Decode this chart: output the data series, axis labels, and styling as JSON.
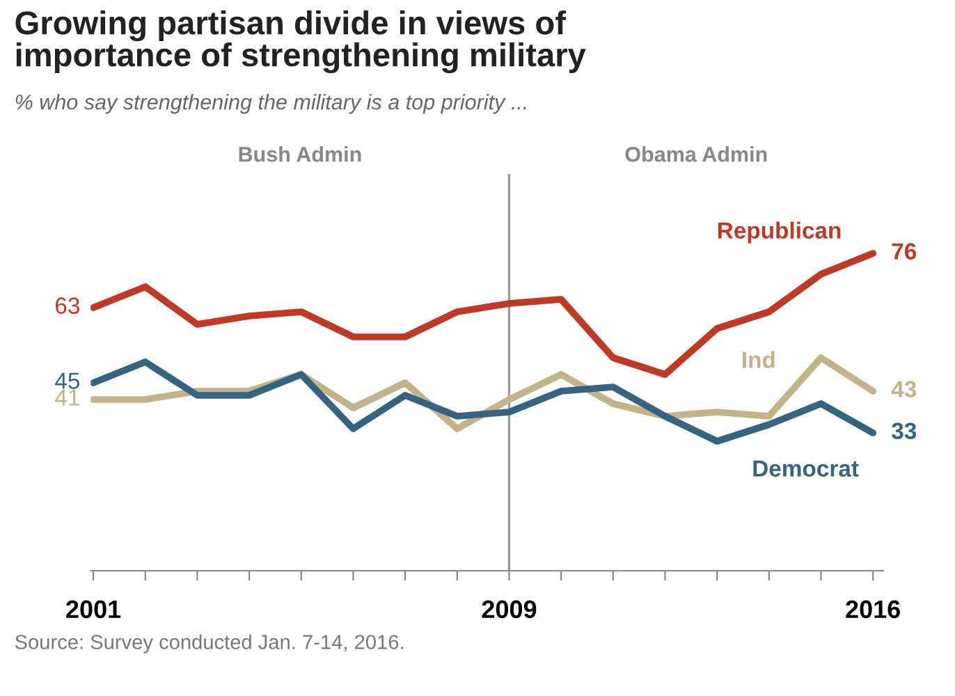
{
  "chart_data": {
    "type": "line",
    "title": "Growing partisan divide in views of\nimportance of strengthening military",
    "subtitle": "% who say strengthening the military is a top priority ...",
    "x": [
      2001,
      2002,
      2003,
      2004,
      2005,
      2006,
      2007,
      2008,
      2009,
      2010,
      2011,
      2012,
      2013,
      2014,
      2015,
      2016
    ],
    "series": [
      {
        "name": "Republican",
        "color": "#bf3927",
        "values": [
          63,
          68,
          59,
          61,
          62,
          56,
          56,
          62,
          64,
          65,
          51,
          47,
          58,
          62,
          71,
          76
        ],
        "value_labels": [
          "63",
          null,
          null,
          null,
          null,
          null,
          null,
          null,
          null,
          null,
          null,
          null,
          null,
          null,
          null,
          "76"
        ]
      },
      {
        "name": "Ind",
        "color": "#c2b48a",
        "values": [
          41,
          41,
          43,
          43,
          47,
          39,
          45,
          34,
          41,
          47,
          40,
          37,
          38,
          37,
          51,
          43
        ],
        "value_labels": [
          "41",
          null,
          null,
          null,
          null,
          null,
          null,
          null,
          null,
          null,
          null,
          null,
          null,
          null,
          null,
          "43"
        ]
      },
      {
        "name": "Democrat",
        "color": "#356382",
        "values": [
          45,
          50,
          42,
          42,
          47,
          34,
          42,
          37,
          38,
          43,
          44,
          37,
          31,
          35,
          40,
          33
        ],
        "value_labels": [
          "45",
          null,
          null,
          null,
          null,
          null,
          null,
          null,
          null,
          null,
          null,
          null,
          null,
          null,
          null,
          "33"
        ]
      }
    ],
    "xlim": [
      2000.95,
      2016.2
    ],
    "ylim": [
      0,
      95
    ],
    "xticks": [
      2001,
      {
        "value": 2002,
        "label": null
      },
      {
        "value": 2003,
        "label": null
      },
      {
        "value": 2004,
        "label": null
      },
      {
        "value": 2005,
        "label": null
      },
      {
        "value": 2006,
        "label": null
      },
      {
        "value": 2007,
        "label": null
      },
      {
        "value": 2008,
        "label": null
      },
      2009,
      {
        "value": 2010,
        "label": null
      },
      {
        "value": 2011,
        "label": null
      },
      {
        "value": 2012,
        "label": null
      },
      {
        "value": 2013,
        "label": null
      },
      {
        "value": 2014,
        "label": null
      },
      {
        "value": 2015,
        "label": null
      },
      2016
    ],
    "tick_labels": "x",
    "ref_lines": [
      {
        "axis": "x",
        "value": 2009,
        "label": null,
        "color": "#9a9a9a"
      }
    ],
    "annotations": [
      "Bush Admin",
      "Obama Admin",
      "Source: Survey conducted Jan. 7-14, 2016."
    ],
    "grid": false,
    "legend": false,
    "marker": "none",
    "line_style": "solid"
  }
}
